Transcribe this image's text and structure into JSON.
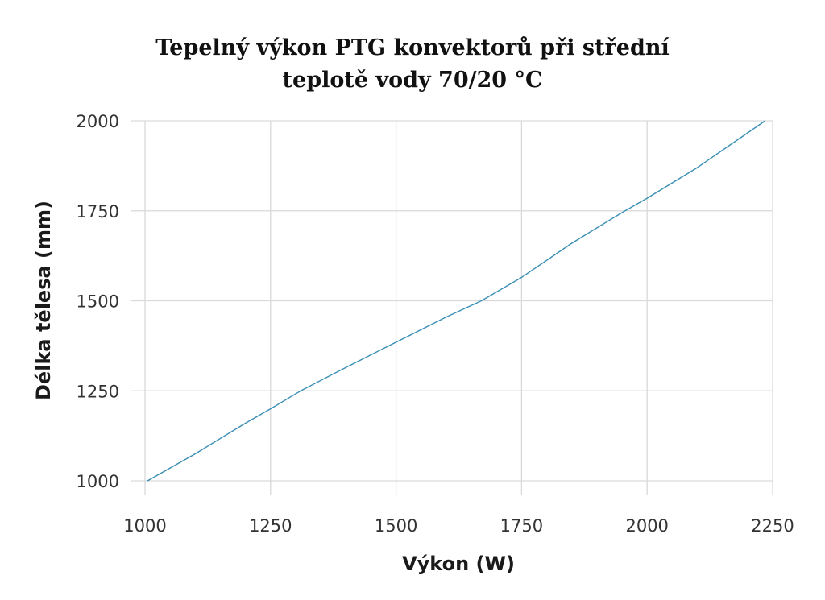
{
  "chart_data": {
    "type": "line",
    "title": "Tepelný výkon PTG konvektorů při střední",
    "subtitle": "teplotě vody 70/20 °C",
    "xlabel": "Výkon (W)",
    "ylabel": "Délka tělesa (mm)",
    "xlim": [
      1000,
      2250
    ],
    "ylim": [
      1000,
      2000
    ],
    "x_ticks": [
      1000,
      1250,
      1500,
      1750,
      2000,
      2250
    ],
    "y_ticks": [
      1000,
      1250,
      1500,
      1750,
      2000
    ],
    "grid": true,
    "line_color": "#3a8fb5",
    "grid_color": "#d9d9d9",
    "series": [
      {
        "x": [
          1005,
          1100,
          1200,
          1250,
          1310,
          1400,
          1500,
          1600,
          1670,
          1750,
          1850,
          1950,
          2000,
          2100,
          2235
        ],
        "y": [
          1000,
          1075,
          1160,
          1200,
          1250,
          1315,
          1385,
          1455,
          1500,
          1565,
          1660,
          1745,
          1785,
          1870,
          2000
        ]
      }
    ]
  }
}
